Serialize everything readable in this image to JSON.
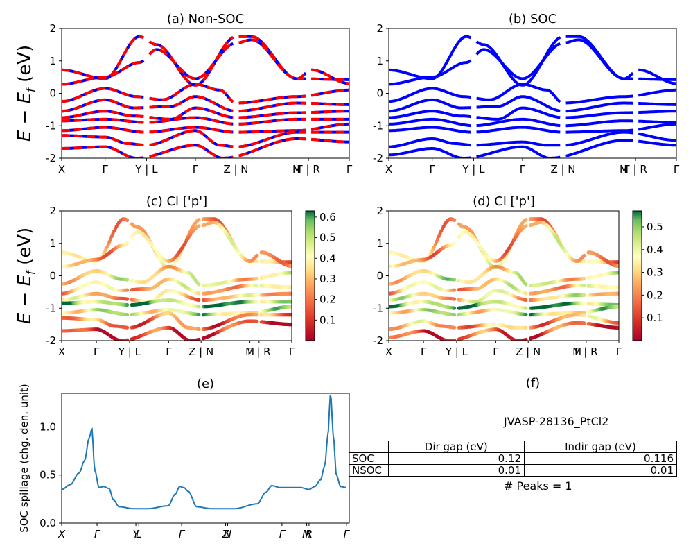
{
  "chart_data": [
    {
      "id": "a",
      "type": "line",
      "title": "(a) Non-SOC",
      "ylabel": "E − E_f (eV)",
      "ylim": [
        -2,
        2
      ],
      "yticks": [
        -2,
        -1,
        0,
        1,
        2
      ],
      "xticklabels": [
        "X",
        "Γ",
        "Y | L",
        "Γ",
        "Z | N",
        "M",
        "Γ | R",
        "Γ"
      ],
      "xtick_pos": [
        0,
        0.151,
        0.295,
        0.465,
        0.606,
        0.818,
        0.858,
        1.0
      ],
      "segments": [
        [
          0,
          0.285
        ],
        [
          0.305,
          0.596
        ],
        [
          0.616,
          0.849
        ],
        [
          0.868,
          1.0
        ]
      ],
      "series_styles": [
        "blue solid",
        "red dashed"
      ],
      "bands": [
        [
          [
            0,
            0.72
          ],
          [
            0.151,
            0.45
          ],
          [
            0.27,
            1.75
          ],
          [
            0.33,
            1.5
          ],
          [
            0.465,
            0.25
          ],
          [
            0.606,
            1.75
          ],
          [
            0.66,
            1.75
          ],
          [
            0.818,
            0.45
          ],
          [
            1.0,
            0.42
          ]
        ],
        [
          [
            0,
            0.28
          ],
          [
            0.151,
            0.5
          ],
          [
            0.27,
            0.95
          ],
          [
            0.33,
            1.35
          ],
          [
            0.465,
            0.45
          ],
          [
            0.606,
            1.55
          ],
          [
            0.66,
            1.65
          ],
          [
            0.818,
            0.45
          ],
          [
            0.87,
            0.72
          ],
          [
            1.0,
            0.3
          ]
        ],
        [
          [
            0,
            -0.25
          ],
          [
            0.151,
            0.15
          ],
          [
            0.26,
            -0.1
          ],
          [
            0.35,
            -0.2
          ],
          [
            0.465,
            0.28
          ],
          [
            0.55,
            0.1
          ],
          [
            0.606,
            -0.3
          ],
          [
            0.818,
            -0.1
          ],
          [
            1.0,
            0.1
          ]
        ],
        [
          [
            0,
            -0.55
          ],
          [
            0.151,
            -0.2
          ],
          [
            0.25,
            -0.45
          ],
          [
            0.38,
            -0.4
          ],
          [
            0.465,
            -0.1
          ],
          [
            0.606,
            -0.55
          ],
          [
            0.818,
            -0.3
          ],
          [
            1.0,
            -0.35
          ]
        ],
        [
          [
            0,
            -0.75
          ],
          [
            0.151,
            -0.55
          ],
          [
            0.25,
            -0.7
          ],
          [
            0.38,
            -0.8
          ],
          [
            0.465,
            -0.45
          ],
          [
            0.606,
            -0.75
          ],
          [
            0.818,
            -0.6
          ],
          [
            1.0,
            -0.55
          ]
        ],
        [
          [
            0,
            -0.85
          ],
          [
            0.151,
            -0.8
          ],
          [
            0.295,
            -0.9
          ],
          [
            0.465,
            -0.75
          ],
          [
            0.606,
            -0.95
          ],
          [
            0.818,
            -0.8
          ],
          [
            1.0,
            -0.8
          ]
        ],
        [
          [
            0,
            -1.15
          ],
          [
            0.151,
            -1.05
          ],
          [
            0.29,
            -1.2
          ],
          [
            0.465,
            -1.05
          ],
          [
            0.606,
            -1.2
          ],
          [
            0.818,
            -1.15
          ],
          [
            1.0,
            -0.95
          ]
        ],
        [
          [
            0,
            -1.3
          ],
          [
            0.151,
            -1.35
          ],
          [
            0.23,
            -1.55
          ],
          [
            0.295,
            -1.6
          ],
          [
            0.465,
            -1.15
          ],
          [
            0.55,
            -1.6
          ],
          [
            0.606,
            -1.65
          ],
          [
            0.818,
            -1.2
          ],
          [
            1.0,
            -1.2
          ]
        ],
        [
          [
            0,
            -1.7
          ],
          [
            0.151,
            -1.65
          ],
          [
            0.26,
            -2.0
          ],
          [
            0.465,
            -1.6
          ],
          [
            0.56,
            -2.0
          ],
          [
            0.818,
            -1.4
          ],
          [
            1.0,
            -1.5
          ]
        ]
      ]
    },
    {
      "id": "b",
      "type": "line",
      "title": "(b) SOC",
      "ylim": [
        -2,
        2
      ],
      "yticks": [
        -2,
        -1,
        0,
        1,
        2
      ],
      "xticklabels": [
        "X",
        "Γ",
        "Y | L",
        "Γ",
        "Z | N",
        "M",
        "Γ | R",
        "Γ"
      ],
      "xtick_pos": [
        0,
        0.151,
        0.295,
        0.465,
        0.606,
        0.818,
        0.858,
        1.0
      ],
      "segments": [
        [
          0,
          0.285
        ],
        [
          0.305,
          0.596
        ],
        [
          0.616,
          0.849
        ],
        [
          0.868,
          1.0
        ]
      ],
      "series_styles": [
        "blue solid"
      ],
      "bands": [
        [
          [
            0,
            0.72
          ],
          [
            0.151,
            0.45
          ],
          [
            0.27,
            1.75
          ],
          [
            0.33,
            1.5
          ],
          [
            0.465,
            0.25
          ],
          [
            0.606,
            1.75
          ],
          [
            0.66,
            1.75
          ],
          [
            0.818,
            0.45
          ],
          [
            1.0,
            0.42
          ]
        ],
        [
          [
            0,
            0.28
          ],
          [
            0.151,
            0.5
          ],
          [
            0.27,
            0.95
          ],
          [
            0.33,
            1.35
          ],
          [
            0.465,
            0.45
          ],
          [
            0.606,
            1.55
          ],
          [
            0.66,
            1.65
          ],
          [
            0.818,
            0.45
          ],
          [
            0.87,
            0.72
          ],
          [
            1.0,
            0.3
          ]
        ],
        [
          [
            0,
            -0.25
          ],
          [
            0.151,
            0.15
          ],
          [
            0.26,
            -0.1
          ],
          [
            0.35,
            -0.2
          ],
          [
            0.465,
            0.28
          ],
          [
            0.55,
            0.1
          ],
          [
            0.606,
            -0.3
          ],
          [
            0.818,
            -0.1
          ],
          [
            1.0,
            0.1
          ]
        ],
        [
          [
            0,
            -0.55
          ],
          [
            0.151,
            -0.2
          ],
          [
            0.25,
            -0.45
          ],
          [
            0.38,
            -0.4
          ],
          [
            0.465,
            -0.1
          ],
          [
            0.606,
            -0.55
          ],
          [
            0.818,
            -0.3
          ],
          [
            1.0,
            -0.35
          ]
        ],
        [
          [
            0,
            -0.75
          ],
          [
            0.151,
            -0.55
          ],
          [
            0.25,
            -0.7
          ],
          [
            0.38,
            -0.8
          ],
          [
            0.465,
            -0.45
          ],
          [
            0.606,
            -0.75
          ],
          [
            0.818,
            -0.6
          ],
          [
            1.0,
            -0.55
          ]
        ],
        [
          [
            0,
            -0.95
          ],
          [
            0.151,
            -0.8
          ],
          [
            0.295,
            -1.0
          ],
          [
            0.465,
            -0.8
          ],
          [
            0.606,
            -1.0
          ],
          [
            0.818,
            -0.85
          ],
          [
            1.0,
            -0.9
          ]
        ],
        [
          [
            0,
            -1.15
          ],
          [
            0.151,
            -1.05
          ],
          [
            0.29,
            -1.2
          ],
          [
            0.465,
            -1.05
          ],
          [
            0.606,
            -1.2
          ],
          [
            0.818,
            -1.15
          ],
          [
            1.0,
            -0.95
          ]
        ],
        [
          [
            0,
            -1.65
          ],
          [
            0.151,
            -1.4
          ],
          [
            0.23,
            -1.55
          ],
          [
            0.295,
            -1.6
          ],
          [
            0.465,
            -1.5
          ],
          [
            0.55,
            -1.6
          ],
          [
            0.606,
            -1.6
          ],
          [
            0.818,
            -1.2
          ],
          [
            1.0,
            -1.45
          ]
        ],
        [
          [
            0,
            -1.9
          ],
          [
            0.151,
            -1.7
          ],
          [
            0.26,
            -2.0
          ],
          [
            0.465,
            -1.65
          ],
          [
            0.56,
            -2.0
          ],
          [
            0.818,
            -1.45
          ],
          [
            1.0,
            -1.6
          ]
        ]
      ]
    },
    {
      "id": "c",
      "type": "scatter",
      "title": "(c)  Cl ['p']",
      "ylabel": "E − E_f (eV)",
      "ylim": [
        -2,
        2
      ],
      "yticks": [
        -2,
        -1,
        0,
        1,
        2
      ],
      "xticklabels": [
        "X",
        "Γ",
        "Y | L",
        "Γ",
        "Z | N",
        "M",
        "Γ | R",
        "Γ"
      ],
      "xtick_pos": [
        0,
        0.151,
        0.295,
        0.465,
        0.606,
        0.818,
        0.858,
        1.0
      ],
      "colormap": "RdYlGn",
      "colorbar_range": [
        0,
        0.63
      ],
      "colorbar_ticks": [
        "0.1",
        "0.2",
        "0.3",
        "0.4",
        "0.5",
        "0.6"
      ],
      "band_weights": [
        0.3,
        0.3,
        0.38,
        0.32,
        0.3,
        0.55,
        0.45,
        0.2,
        0.1
      ]
    },
    {
      "id": "d",
      "type": "scatter",
      "title": "(d) Cl ['p']",
      "ylim": [
        -2,
        2
      ],
      "yticks": [
        -2,
        -1,
        0,
        1,
        2
      ],
      "xticklabels": [
        "X",
        "Γ",
        "Y | L",
        "Γ",
        "Z | N",
        "M",
        "Γ | R",
        "Γ"
      ],
      "xtick_pos": [
        0,
        0.151,
        0.295,
        0.465,
        0.606,
        0.818,
        0.858,
        1.0
      ],
      "colormap": "RdYlGn",
      "colorbar_range": [
        0,
        0.57
      ],
      "colorbar_ticks": [
        "0.1",
        "0.2",
        "0.3",
        "0.4",
        "0.5"
      ],
      "band_weights": [
        0.28,
        0.28,
        0.36,
        0.3,
        0.33,
        0.5,
        0.4,
        0.25,
        0.12
      ]
    },
    {
      "id": "e",
      "type": "line",
      "title": "(e)",
      "ylabel": "SOC spillage (chg. den. unit)",
      "ylim": [
        0,
        1.35
      ],
      "yticks": [
        "0.0",
        "0.5",
        "1.0"
      ],
      "xticklabels": [
        "X",
        "Γ",
        "Y",
        "L",
        "Γ",
        "Z",
        "N",
        "Γ",
        "M",
        "R",
        "Γ"
      ],
      "xtick_pos": [
        0,
        0.123,
        0.258,
        0.268,
        0.417,
        0.57,
        0.577,
        0.766,
        0.852,
        0.86,
        0.99
      ],
      "color": "#1f77b4",
      "x": [
        0,
        0.03,
        0.06,
        0.08,
        0.095,
        0.105,
        0.115,
        0.13,
        0.145,
        0.165,
        0.18,
        0.2,
        0.25,
        0.3,
        0.37,
        0.395,
        0.41,
        0.425,
        0.44,
        0.47,
        0.52,
        0.6,
        0.68,
        0.71,
        0.73,
        0.76,
        0.79,
        0.83,
        0.86,
        0.88,
        0.9,
        0.915,
        0.925,
        0.935,
        0.945,
        0.955,
        0.97,
        0.99
      ],
      "y": [
        0.35,
        0.4,
        0.52,
        0.65,
        0.88,
        0.98,
        0.55,
        0.37,
        0.38,
        0.36,
        0.24,
        0.17,
        0.15,
        0.15,
        0.18,
        0.3,
        0.38,
        0.37,
        0.33,
        0.17,
        0.15,
        0.15,
        0.2,
        0.32,
        0.39,
        0.37,
        0.37,
        0.37,
        0.35,
        0.38,
        0.45,
        0.6,
        0.9,
        1.35,
        0.9,
        0.5,
        0.38,
        0.37
      ]
    },
    {
      "id": "f",
      "type": "table",
      "title": "(f)",
      "subtitle": "JVASP-28136_PtCl2",
      "columns": [
        "Dir gap (eV)",
        "Indir gap (eV)"
      ],
      "rows": [
        {
          "label": "SOC",
          "dir": "0.12",
          "indir": "0.116"
        },
        {
          "label": "NSOC",
          "dir": "0.01",
          "indir": "0.01"
        }
      ],
      "footer": "# Peaks = 1"
    }
  ]
}
